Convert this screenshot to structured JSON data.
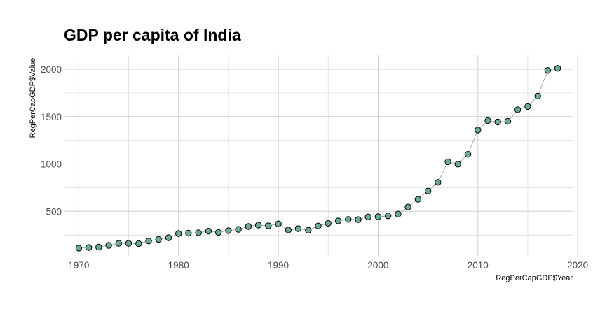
{
  "chart_data": {
    "type": "scatter",
    "title": "GDP per capita of India",
    "xlabel": "RegPerCapGDP$Year",
    "ylabel": "RegPerCapGDP$Value",
    "xlim": [
      1968.5,
      2019.5
    ],
    "ylim": [
      30,
      2155
    ],
    "x_ticks": [
      1970,
      1980,
      1990,
      2000,
      2010,
      2020
    ],
    "y_ticks": [
      500,
      1000,
      1500,
      2000
    ],
    "grid": true,
    "connected_line": true,
    "point_color": "#6aaa96",
    "line_color": "#9a9a9a",
    "series": [
      {
        "x": [
          1970,
          1971,
          1972,
          1973,
          1974,
          1975,
          1976,
          1977,
          1978,
          1979,
          1980,
          1981,
          1982,
          1983,
          1984,
          1985,
          1986,
          1987,
          1988,
          1989,
          1990,
          1991,
          1992,
          1993,
          1994,
          1995,
          1996,
          1997,
          1998,
          1999,
          2000,
          2001,
          2002,
          2003,
          2004,
          2005,
          2006,
          2007,
          2008,
          2009,
          2010,
          2011,
          2012,
          2013,
          2014,
          2015,
          2016,
          2017,
          2018
        ],
        "values": [
          112,
          118,
          122,
          141,
          162,
          162,
          159,
          187,
          204,
          222,
          266,
          270,
          274,
          291,
          277,
          296,
          310,
          340,
          355,
          347,
          368,
          303,
          317,
          301,
          346,
          374,
          400,
          415,
          413,
          442,
          443,
          452,
          471,
          546,
          627,
          714,
          806,
          1023,
          998,
          1102,
          1358,
          1458,
          1444,
          1450,
          1573,
          1606,
          1717,
          1987,
          2010
        ]
      }
    ]
  }
}
